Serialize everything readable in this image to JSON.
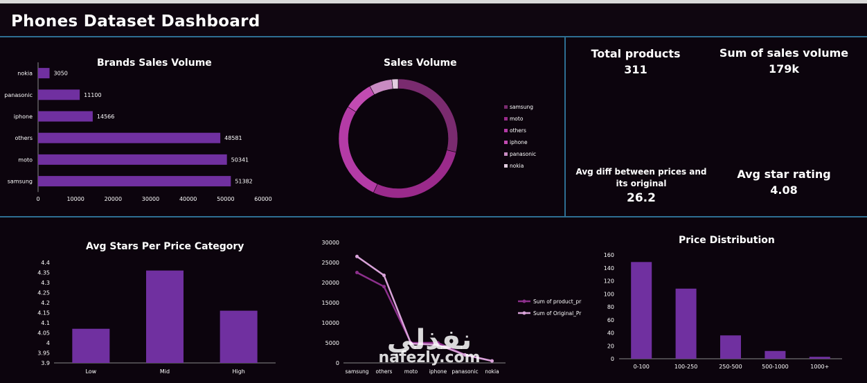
{
  "dashboard": {
    "title": "Phones Dataset Dashboard"
  },
  "kpis": {
    "total_products_label": "Total products",
    "total_products_value": "311",
    "sum_sales_label": "Sum of sales volume",
    "sum_sales_value": "179k",
    "avg_diff_label_line1": "Avg diff between prices and",
    "avg_diff_label_line2": "its original",
    "avg_diff_value": "26.2",
    "avg_star_label": "Avg star rating",
    "avg_star_value": "4.08"
  },
  "watermark": {
    "text": "nafezly.com"
  },
  "chart_data": [
    {
      "id": "brands",
      "type": "bar",
      "orientation": "horizontal",
      "title": "Brands Sales Volume",
      "categories": [
        "nokia",
        "panasonic",
        "iphone",
        "others",
        "moto",
        "samsung"
      ],
      "values": [
        3050,
        11100,
        14566,
        48581,
        50341,
        51382
      ],
      "xlim": [
        0,
        60000
      ],
      "xticks": [
        "0",
        "10000",
        "20000",
        "30000",
        "40000",
        "50000",
        "60000"
      ],
      "color": "#7030a0"
    },
    {
      "id": "sales_donut",
      "type": "pie",
      "style": "donut",
      "title": "Sales Volume",
      "categories": [
        "samsung",
        "moto",
        "others",
        "iphone",
        "panasonic",
        "nokia"
      ],
      "values": [
        51382,
        50341,
        48581,
        14566,
        11100,
        3050
      ],
      "colors": [
        "#7a2b6f",
        "#9a2a8b",
        "#b43ba6",
        "#c24bb2",
        "#c88bc2",
        "#e2cde0"
      ],
      "legend": "right"
    },
    {
      "id": "stars",
      "type": "bar",
      "title": "Avg Stars Per Price Category",
      "categories": [
        "Low",
        "Mid",
        "High"
      ],
      "values": [
        4.07,
        4.36,
        4.16
      ],
      "ylim": [
        3.9,
        4.4
      ],
      "yticks": [
        "4.4",
        "4.35",
        "4.3",
        "4.25",
        "4.2",
        "4.15",
        "4.1",
        "4.05",
        "4",
        "3.95",
        "3.9"
      ],
      "color": "#7030a0"
    },
    {
      "id": "prices_line",
      "type": "line",
      "categories": [
        "samsung",
        "others",
        "moto",
        "iphone",
        "panasonic",
        "nokia"
      ],
      "series": [
        {
          "name": "Sum of product_price",
          "values": [
            22500,
            19000,
            5000,
            5000,
            2000,
            500
          ],
          "color": "#8c2f8c"
        },
        {
          "name": "Sum of Original_Price",
          "values": [
            26500,
            21800,
            4800,
            4500,
            2000,
            500
          ],
          "color": "#d9a3d9"
        }
      ],
      "ylim": [
        0,
        30000
      ],
      "yticks": [
        "30000",
        "25000",
        "20000",
        "15000",
        "10000",
        "5000",
        "0"
      ],
      "legend": "right"
    },
    {
      "id": "price_dist",
      "type": "bar",
      "title": "Price Distribution",
      "categories": [
        "0-100",
        "100-250",
        "250-500",
        "500-1000",
        "1000+"
      ],
      "values": [
        149,
        108,
        36,
        12,
        3
      ],
      "ylim": [
        0,
        160
      ],
      "yticks": [
        "160",
        "140",
        "120",
        "100",
        "80",
        "60",
        "40",
        "20",
        "0"
      ],
      "color": "#7030a0"
    }
  ]
}
